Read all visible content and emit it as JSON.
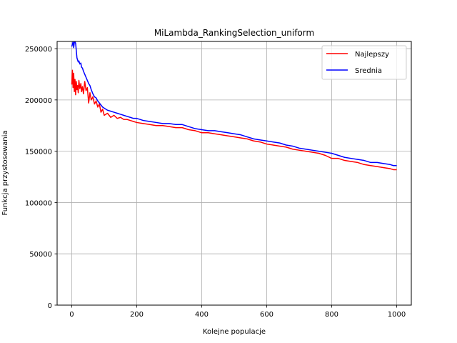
{
  "chart_data": {
    "type": "line",
    "title": "MiLambda_RankingSelection_uniform",
    "xlabel": "Kolejne populacje",
    "ylabel": "Funkcja przystosowania",
    "xlim": [
      -45,
      1045
    ],
    "ylim": [
      0,
      257000
    ],
    "xticks": [
      0,
      200,
      400,
      600,
      800,
      1000
    ],
    "xtick_labels": [
      "0",
      "200",
      "400",
      "600",
      "800",
      "1000"
    ],
    "yticks": [
      0,
      50000,
      100000,
      150000,
      200000,
      250000
    ],
    "ytick_labels": [
      "0",
      "50000",
      "100000",
      "150000",
      "200000",
      "250000"
    ],
    "grid": true,
    "legend_position": "upper right",
    "series": [
      {
        "name": "Najlepszy",
        "color": "#ff0000",
        "x": [
          0,
          2,
          4,
          6,
          8,
          10,
          12,
          14,
          16,
          18,
          20,
          22,
          25,
          28,
          30,
          33,
          36,
          40,
          44,
          48,
          52,
          56,
          60,
          65,
          70,
          75,
          80,
          85,
          90,
          95,
          100,
          110,
          120,
          130,
          140,
          150,
          160,
          170,
          180,
          190,
          200,
          220,
          240,
          260,
          280,
          300,
          320,
          340,
          360,
          380,
          400,
          420,
          440,
          460,
          480,
          500,
          520,
          540,
          560,
          580,
          600,
          620,
          640,
          660,
          680,
          700,
          720,
          740,
          760,
          780,
          800,
          820,
          840,
          860,
          880,
          900,
          920,
          940,
          960,
          980,
          990,
          1000
        ],
        "y": [
          215000,
          229000,
          212000,
          226000,
          208000,
          220000,
          205000,
          218000,
          210000,
          214000,
          207000,
          219000,
          211000,
          216000,
          208000,
          213000,
          206000,
          218000,
          209000,
          212000,
          197000,
          207000,
          200000,
          203000,
          196000,
          199000,
          193000,
          196000,
          188000,
          191000,
          185000,
          187000,
          183000,
          185000,
          182000,
          183000,
          181000,
          181000,
          180000,
          179000,
          178000,
          177000,
          176000,
          175000,
          175000,
          174000,
          173000,
          173000,
          171000,
          170000,
          168000,
          168000,
          167000,
          166000,
          165000,
          164000,
          163000,
          162000,
          160000,
          159000,
          157000,
          156000,
          155000,
          154000,
          152000,
          151000,
          150000,
          149000,
          148000,
          146000,
          143000,
          143000,
          141000,
          140000,
          139000,
          137000,
          136000,
          135000,
          134000,
          133000,
          132000,
          132000
        ]
      },
      {
        "name": "Srednia",
        "color": "#0000ff",
        "x": [
          0,
          2,
          4,
          6,
          8,
          10,
          12,
          14,
          16,
          18,
          20,
          22,
          25,
          28,
          30,
          33,
          36,
          40,
          44,
          48,
          52,
          56,
          60,
          65,
          70,
          75,
          80,
          85,
          90,
          95,
          100,
          110,
          120,
          130,
          140,
          150,
          160,
          170,
          180,
          190,
          200,
          220,
          240,
          260,
          280,
          300,
          320,
          340,
          360,
          380,
          400,
          420,
          440,
          460,
          480,
          500,
          520,
          540,
          560,
          580,
          600,
          620,
          640,
          660,
          680,
          700,
          720,
          740,
          760,
          780,
          800,
          820,
          840,
          860,
          880,
          900,
          920,
          940,
          960,
          980,
          990,
          1000
        ],
        "y": [
          252000,
          254000,
          257000,
          251000,
          256000,
          257000,
          255000,
          248000,
          241000,
          239000,
          237000,
          238000,
          235000,
          236000,
          232000,
          231000,
          228000,
          225000,
          222000,
          219000,
          216000,
          214000,
          210000,
          206000,
          203000,
          202000,
          199000,
          197000,
          195000,
          193000,
          192000,
          190000,
          189000,
          188000,
          187000,
          186000,
          185000,
          184000,
          183000,
          182000,
          182000,
          180000,
          179000,
          178000,
          177000,
          177000,
          176000,
          176000,
          174000,
          172000,
          171000,
          170000,
          170000,
          169000,
          168000,
          167000,
          166000,
          164000,
          162000,
          161000,
          160000,
          159000,
          158000,
          156000,
          155000,
          153000,
          152000,
          151000,
          150000,
          149000,
          148000,
          146000,
          144000,
          143000,
          142000,
          141000,
          139000,
          139000,
          138000,
          137000,
          136000,
          136000
        ]
      }
    ]
  }
}
